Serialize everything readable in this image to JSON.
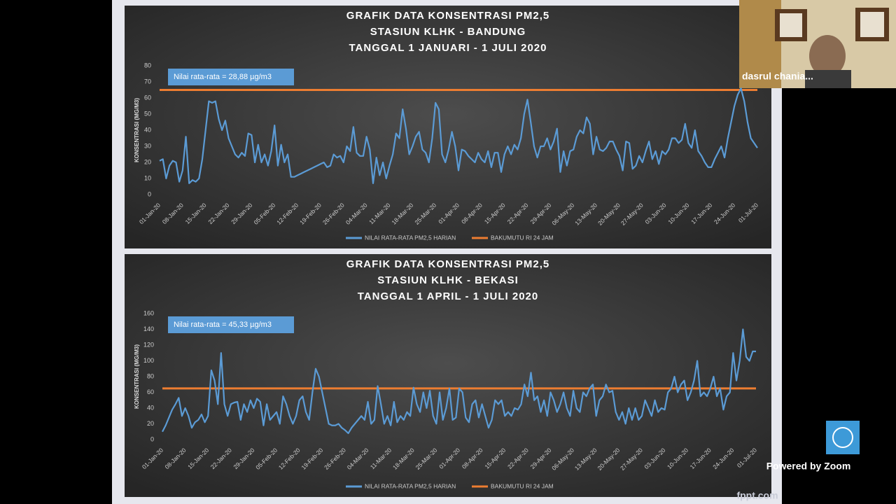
{
  "chart_data": [
    {
      "type": "line",
      "title": [
        "GRAFIK DATA KONSENTRASI PM2,5",
        "STASIUN KLHK - BANDUNG",
        "TANGGAL 1 JANUARI - 1 JULI 2020"
      ],
      "y_label": "KONSENTRASI (MG/M3)",
      "annotation": "Nilai rata-rata = 28,88 µg/m3",
      "ylim": [
        0,
        80
      ],
      "yticks": [
        0,
        10,
        20,
        30,
        40,
        50,
        60,
        70,
        80
      ],
      "grid": false,
      "categories": [
        "01-Jan-20",
        null,
        null,
        null,
        null,
        null,
        null,
        "08-Jan-20",
        null,
        null,
        null,
        null,
        null,
        null,
        "15-Jan-20",
        null,
        null,
        null,
        null,
        null,
        null,
        "22-Jan-20",
        null,
        null,
        null,
        null,
        null,
        null,
        "29-Jan-20",
        null,
        null,
        null,
        null,
        null,
        null,
        "05-Feb-20",
        null,
        null,
        null,
        null,
        null,
        null,
        "12-Feb-20",
        null,
        null,
        null,
        null,
        null,
        null,
        "19-Feb-20",
        null,
        null,
        null,
        null,
        null,
        null,
        "26-Feb-20",
        null,
        null,
        null,
        null,
        null,
        null,
        "04-Mar-20",
        null,
        null,
        null,
        null,
        null,
        null,
        "11-Mar-20",
        null,
        null,
        null,
        null,
        null,
        null,
        "18-Mar-20",
        null,
        null,
        null,
        null,
        null,
        null,
        "25-Mar-20",
        null,
        null,
        null,
        null,
        null,
        null,
        "01-Apr-20",
        null,
        null,
        null,
        null,
        null,
        null,
        "08-Apr-20",
        null,
        null,
        null,
        null,
        null,
        null,
        "15-Apr-20",
        null,
        null,
        null,
        null,
        null,
        null,
        "22-Apr-20",
        null,
        null,
        null,
        null,
        null,
        null,
        "29-Apr-20",
        null,
        null,
        null,
        null,
        null,
        null,
        "06-May-20",
        null,
        null,
        null,
        null,
        null,
        null,
        "13-May-20",
        null,
        null,
        null,
        null,
        null,
        null,
        "20-May-20",
        null,
        null,
        null,
        null,
        null,
        null,
        "27-May-20",
        null,
        null,
        null,
        null,
        null,
        null,
        "03-Jun-20",
        null,
        null,
        null,
        null,
        null,
        null,
        "10-Jun-20",
        null,
        null,
        null,
        null,
        null,
        null,
        "17-Jun-20",
        null,
        null,
        null,
        null,
        null,
        null,
        "24-Jun-20",
        null,
        null,
        null,
        null,
        null,
        null,
        "01-Jul-20"
      ],
      "series": [
        {
          "name": "NILAI RATA-RATA PM2,5 HARIAN",
          "color": "#5b9bd5",
          "values": [
            21,
            22,
            10,
            18,
            21,
            20,
            8,
            15,
            36,
            7,
            9,
            8,
            10,
            22,
            40,
            58,
            57,
            58,
            47,
            40,
            46,
            35,
            30,
            25,
            23,
            26,
            24,
            38,
            37,
            20,
            31,
            20,
            25,
            18,
            27,
            43,
            18,
            31,
            20,
            25,
            11,
            11,
            12,
            13,
            14,
            15,
            16,
            17,
            18,
            19,
            20,
            17,
            18,
            25,
            23,
            24,
            20,
            30,
            27,
            42,
            26,
            24,
            24,
            36,
            28,
            7,
            23,
            12,
            20,
            10,
            18,
            25,
            38,
            35,
            53,
            41,
            25,
            30,
            36,
            39,
            28,
            26,
            20,
            35,
            57,
            53,
            25,
            20,
            28,
            39,
            30,
            15,
            28,
            27,
            24,
            22,
            20,
            26,
            22,
            20,
            27,
            17,
            26,
            26,
            14,
            25,
            30,
            25,
            31,
            28,
            35,
            50,
            59,
            45,
            30,
            23,
            30,
            30,
            35,
            28,
            33,
            41,
            14,
            27,
            18,
            27,
            28,
            36,
            40,
            38,
            48,
            44,
            25,
            36,
            28,
            27,
            29,
            33,
            33,
            28,
            24,
            15,
            33,
            32,
            16,
            18,
            24,
            20,
            27,
            33,
            22,
            27,
            19,
            27,
            25,
            28,
            35,
            35,
            32,
            34,
            44,
            32,
            29,
            40,
            27,
            24,
            20,
            17,
            17,
            22,
            26,
            30,
            23,
            35,
            45,
            55,
            62,
            66,
            58,
            45,
            35,
            32,
            29
          ]
        }
      ],
      "reference_line": {
        "name": "BAKUMUTU RI 24 JAM",
        "color": "#ed7d31",
        "value": 65
      }
    },
    {
      "type": "line",
      "title": [
        "GRAFIK DATA KONSENTRASI PM2,5",
        "STASIUN KLHK - BEKASI",
        "TANGGAL 1 APRIL - 1 JULI 2020"
      ],
      "y_label": "KONSENTRASI (MG/M3)",
      "annotation": "Nilai rata-rata = 45,33 µg/m3",
      "ylim": [
        0,
        160
      ],
      "yticks": [
        0,
        20,
        40,
        60,
        80,
        100,
        120,
        140,
        160
      ],
      "grid": false,
      "categories": [
        "01-Jan-20",
        null,
        null,
        null,
        null,
        null,
        null,
        "08-Jan-20",
        null,
        null,
        null,
        null,
        null,
        null,
        "15-Jan-20",
        null,
        null,
        null,
        null,
        null,
        null,
        "22-Jan-20",
        null,
        null,
        null,
        null,
        null,
        null,
        "29-Jan-20",
        null,
        null,
        null,
        null,
        null,
        null,
        "05-Feb-20",
        null,
        null,
        null,
        null,
        null,
        null,
        "12-Feb-20",
        null,
        null,
        null,
        null,
        null,
        null,
        "19-Feb-20",
        null,
        null,
        null,
        null,
        null,
        null,
        "26-Feb-20",
        null,
        null,
        null,
        null,
        null,
        null,
        "04-Mar-20",
        null,
        null,
        null,
        null,
        null,
        null,
        "11-Mar-20",
        null,
        null,
        null,
        null,
        null,
        null,
        "18-Mar-20",
        null,
        null,
        null,
        null,
        null,
        null,
        "25-Mar-20",
        null,
        null,
        null,
        null,
        null,
        null,
        "01-Apr-20",
        null,
        null,
        null,
        null,
        null,
        null,
        "08-Apr-20",
        null,
        null,
        null,
        null,
        null,
        null,
        "15-Apr-20",
        null,
        null,
        null,
        null,
        null,
        null,
        "22-Apr-20",
        null,
        null,
        null,
        null,
        null,
        null,
        "29-Apr-20",
        null,
        null,
        null,
        null,
        null,
        null,
        "06-May-20",
        null,
        null,
        null,
        null,
        null,
        null,
        "13-May-20",
        null,
        null,
        null,
        null,
        null,
        null,
        "20-May-20",
        null,
        null,
        null,
        null,
        null,
        null,
        "27-May-20",
        null,
        null,
        null,
        null,
        null,
        null,
        "03-Jun-20",
        null,
        null,
        null,
        null,
        null,
        null,
        "10-Jun-20",
        null,
        null,
        null,
        null,
        null,
        null,
        "17-Jun-20",
        null,
        null,
        null,
        null,
        null,
        null,
        "24-Jun-20",
        null,
        null,
        null,
        null,
        null,
        null,
        "01-Jul-20"
      ],
      "series": [
        {
          "name": "NILAI RATA-RATA PM2,5 HARIAN",
          "color": "#5b9bd5",
          "values": [
            10,
            18,
            28,
            38,
            45,
            53,
            30,
            40,
            30,
            15,
            22,
            25,
            32,
            22,
            30,
            88,
            75,
            45,
            110,
            45,
            30,
            45,
            47,
            48,
            25,
            45,
            35,
            50,
            40,
            52,
            48,
            18,
            45,
            25,
            30,
            35,
            20,
            55,
            45,
            30,
            20,
            30,
            50,
            55,
            35,
            25,
            60,
            90,
            80,
            60,
            40,
            20,
            18,
            18,
            20,
            15,
            12,
            8,
            15,
            20,
            25,
            30,
            25,
            48,
            20,
            25,
            68,
            45,
            20,
            30,
            18,
            48,
            22,
            30,
            25,
            35,
            30,
            66,
            45,
            35,
            60,
            40,
            62,
            30,
            20,
            60,
            25,
            40,
            65,
            25,
            28,
            65,
            60,
            28,
            22,
            45,
            50,
            28,
            45,
            30,
            15,
            25,
            50,
            45,
            50,
            30,
            35,
            30,
            40,
            38,
            45,
            70,
            55,
            85,
            50,
            55,
            35,
            50,
            30,
            60,
            50,
            35,
            45,
            60,
            40,
            30,
            62,
            40,
            35,
            60,
            55,
            65,
            70,
            30,
            50,
            55,
            70,
            60,
            62,
            35,
            25,
            35,
            20,
            40,
            25,
            40,
            25,
            30,
            50,
            40,
            30,
            50,
            35,
            40,
            38,
            60,
            65,
            80,
            60,
            70,
            75,
            50,
            60,
            75,
            100,
            55,
            60,
            55,
            65,
            80,
            55,
            65,
            38,
            55,
            60,
            110,
            75,
            100,
            140,
            105,
            100,
            112,
            112
          ]
        }
      ],
      "reference_line": {
        "name": "BAKUMUTU RI 24 JAM",
        "color": "#ed7d31",
        "value": 65
      }
    }
  ],
  "zoom": {
    "participant_name": "dasrul chania...",
    "powered_by": "Powered by Zoom",
    "slide_watermark": "fppt.com"
  }
}
